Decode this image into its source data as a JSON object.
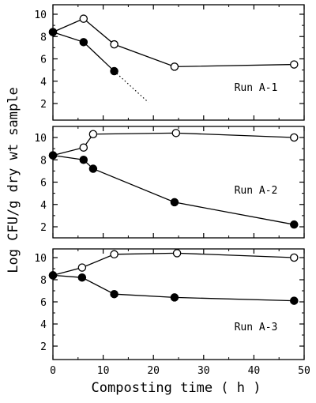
{
  "chart_data": {
    "type": "line",
    "ylabel": "Log CFU/g dry wt sample",
    "xlabel": "Composting time ( h )",
    "x_ticks": [
      0,
      10,
      20,
      30,
      40,
      50
    ],
    "xlim": [
      0,
      50
    ],
    "panels": [
      {
        "label": "Run A-1",
        "ylim": [
          2,
          10
        ],
        "y_ticks": [
          2,
          4,
          6,
          8,
          10
        ],
        "series": [
          {
            "marker": "open",
            "points": [
              [
                0,
                8.4
              ],
              [
                6.1,
                9.6
              ],
              [
                12.2,
                7.3
              ],
              [
                24.2,
                5.3
              ],
              [
                48,
                5.5
              ]
            ]
          },
          {
            "marker": "filled",
            "points": [
              [
                0,
                8.4
              ],
              [
                6.1,
                7.5
              ],
              [
                12.2,
                4.9
              ]
            ],
            "dotted_extension": [
              [
                12.2,
                4.9
              ],
              [
                19,
                2.1
              ]
            ]
          }
        ]
      },
      {
        "label": "Run A-2",
        "ylim": [
          2,
          10
        ],
        "y_ticks": [
          2,
          4,
          6,
          8,
          10
        ],
        "series": [
          {
            "marker": "open",
            "points": [
              [
                0,
                8.4
              ],
              [
                6.1,
                9.1
              ],
              [
                8,
                10.3
              ],
              [
                24.5,
                10.4
              ],
              [
                48,
                10.0
              ]
            ]
          },
          {
            "marker": "filled",
            "points": [
              [
                0,
                8.4
              ],
              [
                6.1,
                8.0
              ],
              [
                8,
                7.2
              ],
              [
                24.2,
                4.2
              ],
              [
                48,
                2.2
              ]
            ]
          }
        ]
      },
      {
        "label": "Run A-3",
        "ylim": [
          2,
          10
        ],
        "y_ticks": [
          2,
          4,
          6,
          8,
          10
        ],
        "series": [
          {
            "marker": "open",
            "points": [
              [
                0,
                8.4
              ],
              [
                5.8,
                9.1
              ],
              [
                12.2,
                10.3
              ],
              [
                24.7,
                10.4
              ],
              [
                48,
                10.0
              ]
            ]
          },
          {
            "marker": "filled",
            "points": [
              [
                0,
                8.4
              ],
              [
                5.8,
                8.2
              ],
              [
                12.2,
                6.7
              ],
              [
                24.2,
                6.4
              ],
              [
                48,
                6.1
              ]
            ]
          }
        ]
      }
    ]
  }
}
